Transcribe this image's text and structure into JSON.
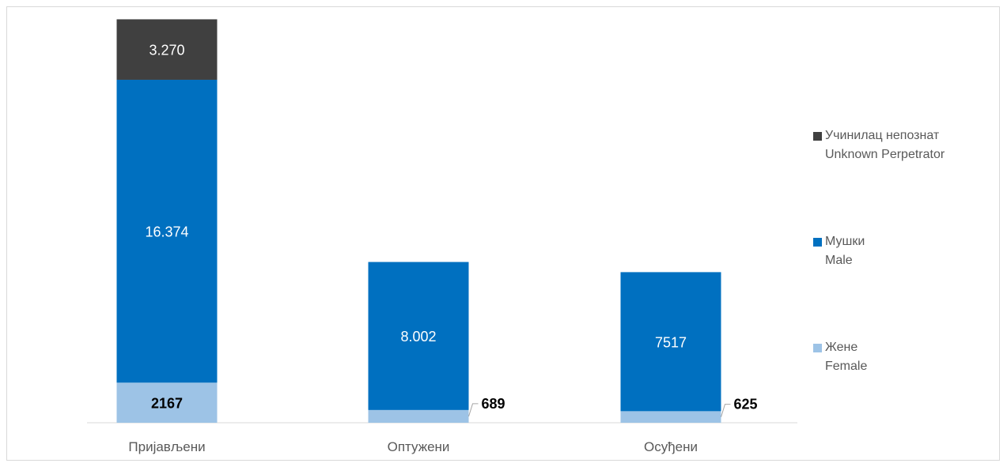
{
  "chart_data": {
    "type": "bar",
    "stacked": true,
    "categories": [
      "Пријављени",
      "Оптужени",
      "Осуђени"
    ],
    "series": [
      {
        "key": "female",
        "name_line1": "Жене",
        "name_line2": "Female",
        "color": "#9dc3e6",
        "values": [
          2167,
          689,
          625
        ],
        "labels": [
          "2167",
          "689",
          "625"
        ]
      },
      {
        "key": "male",
        "name_line1": "Мушки",
        "name_line2": "Male",
        "color": "#0070c0",
        "values": [
          16374,
          8002,
          7517
        ],
        "labels": [
          "16.374",
          "8.002",
          "7517"
        ]
      },
      {
        "key": "unknown",
        "name_line1": "Учинилац непознат",
        "name_line2": "Unknown Perpetrator",
        "color": "#404040",
        "values": [
          3270,
          null,
          null
        ],
        "labels": [
          "3.270",
          "",
          ""
        ]
      }
    ],
    "ylim": [
      0,
      22000
    ],
    "grid": false,
    "legend_position": "right"
  }
}
